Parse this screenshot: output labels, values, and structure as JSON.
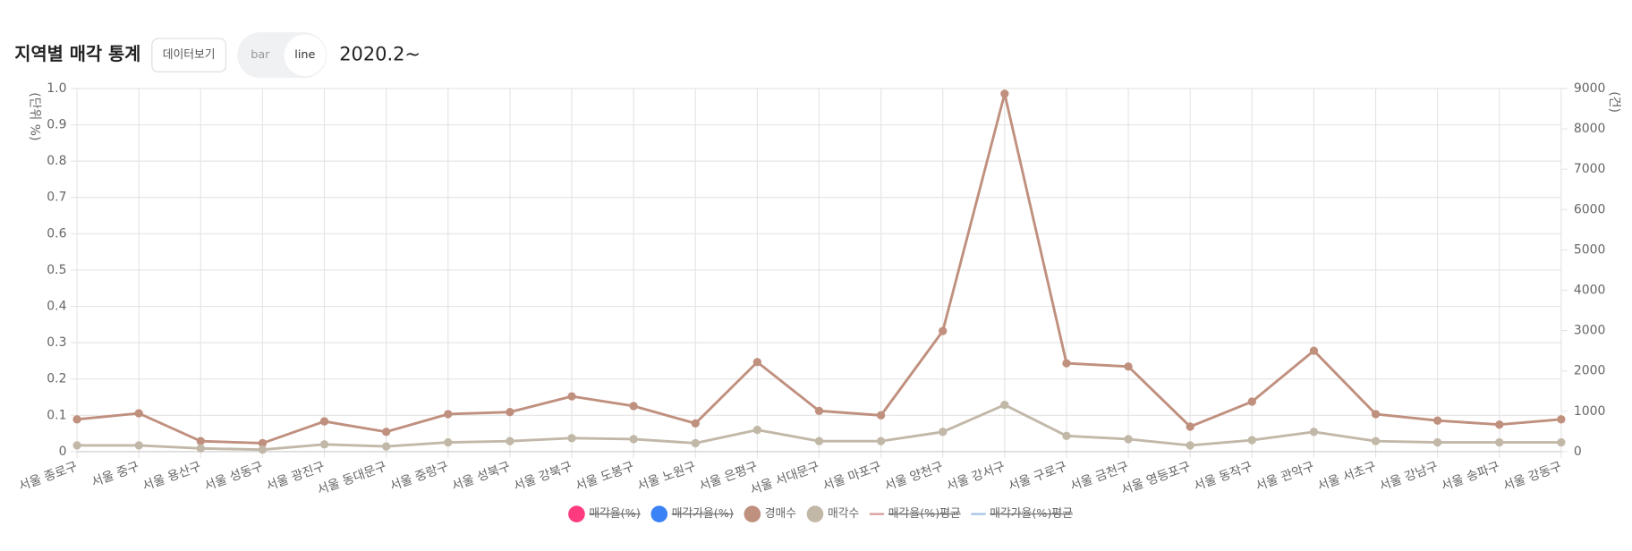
{
  "chart_data": {
    "type": "line",
    "title": "지역별 매각 통계",
    "subtitle": "2020.2~",
    "y_label": "(단위 %)",
    "y2_label": "(건)",
    "categories": [
      "서울 종로구",
      "서울 중구",
      "서울 용산구",
      "서울 성동구",
      "서울 광진구",
      "서울 동대문구",
      "서울 중랑구",
      "서울 성북구",
      "서울 강북구",
      "서울 도봉구",
      "서울 노원구",
      "서울 은평구",
      "서울 서대문구",
      "서울 마포구",
      "서울 양천구",
      "서울 강서구",
      "서울 구로구",
      "서울 금천구",
      "서울 영등포구",
      "서울 동작구",
      "서울 관악구",
      "서울 서초구",
      "서울 강남구",
      "서울 송파구",
      "서울 강동구"
    ],
    "ylim": [
      0,
      1
    ],
    "yticks": [
      0,
      0.1,
      0.2,
      0.3,
      0.4,
      0.5,
      0.6,
      0.7,
      0.8,
      0.9,
      {
        "value": 1,
        "label": "1.0"
      }
    ],
    "y2lim": [
      0,
      9000
    ],
    "y2ticks": [
      0,
      1000,
      2000,
      3000,
      4000,
      5000,
      6000,
      7000,
      8000,
      9000
    ],
    "grid": true,
    "legend": "bottom",
    "series": [
      {
        "name": "매각율(%)",
        "color": "#ff3b7f",
        "hidden": true,
        "marker": "circle"
      },
      {
        "name": "매각가율(%)",
        "color": "#3b82f6",
        "hidden": true,
        "marker": "circle"
      },
      {
        "name": "경매수",
        "color": "#c0907f",
        "axis": "y2",
        "marker": "circle",
        "values": [
          800,
          950,
          260,
          210,
          750,
          490,
          930,
          980,
          1370,
          1130,
          700,
          2220,
          1010,
          900,
          2990,
          8870,
          2190,
          2110,
          620,
          1240,
          2500,
          930,
          770,
          670,
          800
        ]
      },
      {
        "name": "매각수",
        "color": "#c2b8a8",
        "axis": "y2",
        "marker": "circle",
        "values": [
          155,
          155,
          80,
          50,
          180,
          130,
          230,
          260,
          335,
          310,
          210,
          540,
          260,
          260,
          490,
          1160,
          390,
          310,
          155,
          285,
          490,
          260,
          230,
          230,
          230
        ]
      },
      {
        "name": "매각율(%)평균",
        "color": "#d9a0a0",
        "hidden": true,
        "marker": "line"
      },
      {
        "name": "매각가율(%)평균",
        "color": "#a8c4e8",
        "hidden": true,
        "marker": "line"
      }
    ]
  },
  "controls": {
    "data_button": "데이터보기",
    "toggle": [
      "bar",
      "line"
    ],
    "active": "line"
  }
}
